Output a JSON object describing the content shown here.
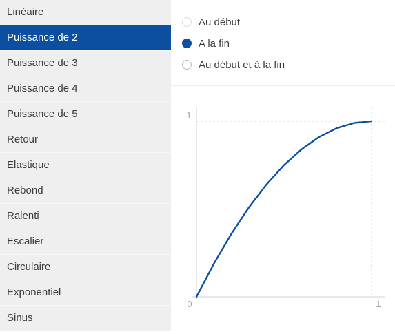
{
  "sidebar": {
    "items": [
      {
        "label": "Linéaire",
        "selected": false
      },
      {
        "label": "Puissance de 2",
        "selected": true
      },
      {
        "label": "Puissance de 3",
        "selected": false
      },
      {
        "label": "Puissance de 4",
        "selected": false
      },
      {
        "label": "Puissance de 5",
        "selected": false
      },
      {
        "label": "Retour",
        "selected": false
      },
      {
        "label": "Elastique",
        "selected": false
      },
      {
        "label": "Rebond",
        "selected": false
      },
      {
        "label": "Ralenti",
        "selected": false
      },
      {
        "label": "Escalier",
        "selected": false
      },
      {
        "label": "Circulaire",
        "selected": false
      },
      {
        "label": "Exponentiel",
        "selected": false
      },
      {
        "label": "Sinus",
        "selected": false
      }
    ]
  },
  "options": {
    "radios": [
      {
        "label": "Au début",
        "checked": false
      },
      {
        "label": "A la fin",
        "checked": true
      },
      {
        "label": "Au début et à la fin",
        "checked": false
      }
    ]
  },
  "chart": {
    "x_min_label": "0",
    "x_max_label": "1",
    "y_max_label": "1",
    "curve_color": "#0c4fa0",
    "accent_color": "#0c4fa0"
  },
  "chart_data": {
    "type": "line",
    "xlim": [
      0,
      1
    ],
    "ylim": [
      0,
      1
    ],
    "series": [
      {
        "x": [
          0,
          0.1,
          0.2,
          0.3,
          0.4,
          0.5,
          0.6,
          0.7,
          0.8,
          0.9,
          1.0
        ],
        "y": [
          0,
          0.19,
          0.36,
          0.51,
          0.64,
          0.75,
          0.84,
          0.91,
          0.96,
          0.99,
          1.0
        ]
      }
    ]
  }
}
